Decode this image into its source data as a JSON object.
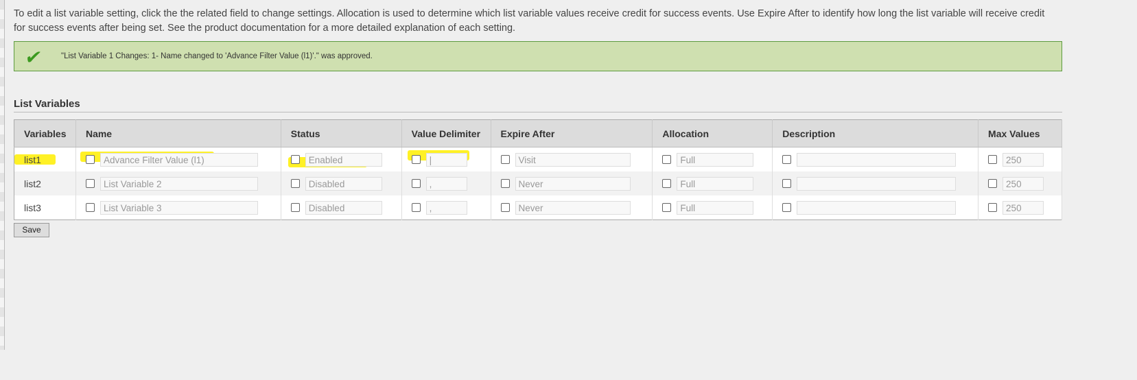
{
  "intro": "To edit a list variable setting, click the the related field to change settings. Allocation is used to determine which list variable values receive credit for success events. Use Expire After to identify how long the list variable will receive credit for success events after being set. See the product documentation for a more detailed explanation of each setting.",
  "message": {
    "icon": "checkmark-icon",
    "text": "\"List Variable 1 Changes: 1- Name changed to 'Advance Filter Value (l1)'.\" was approved.",
    "color": "#cfe0b0"
  },
  "section_title": "List Variables",
  "columns": [
    "Variables",
    "Name",
    "Status",
    "Value Delimiter",
    "Expire After",
    "Allocation",
    "Description",
    "Max Values"
  ],
  "rows": [
    {
      "variable": "list1",
      "name": "Advance Filter Value (l1)",
      "status": "Enabled",
      "delimiter": "|",
      "expire": "Visit",
      "allocation": "Full",
      "description": "",
      "max": "250"
    },
    {
      "variable": "list2",
      "name": "List Variable 2",
      "status": "Disabled",
      "delimiter": ",",
      "expire": "Never",
      "allocation": "Full",
      "description": "",
      "max": "250"
    },
    {
      "variable": "list3",
      "name": "List Variable 3",
      "status": "Disabled",
      "delimiter": ",",
      "expire": "Never",
      "allocation": "Full",
      "description": "",
      "max": "250"
    }
  ],
  "save_label": "Save",
  "highlight_color": "#ffef00"
}
